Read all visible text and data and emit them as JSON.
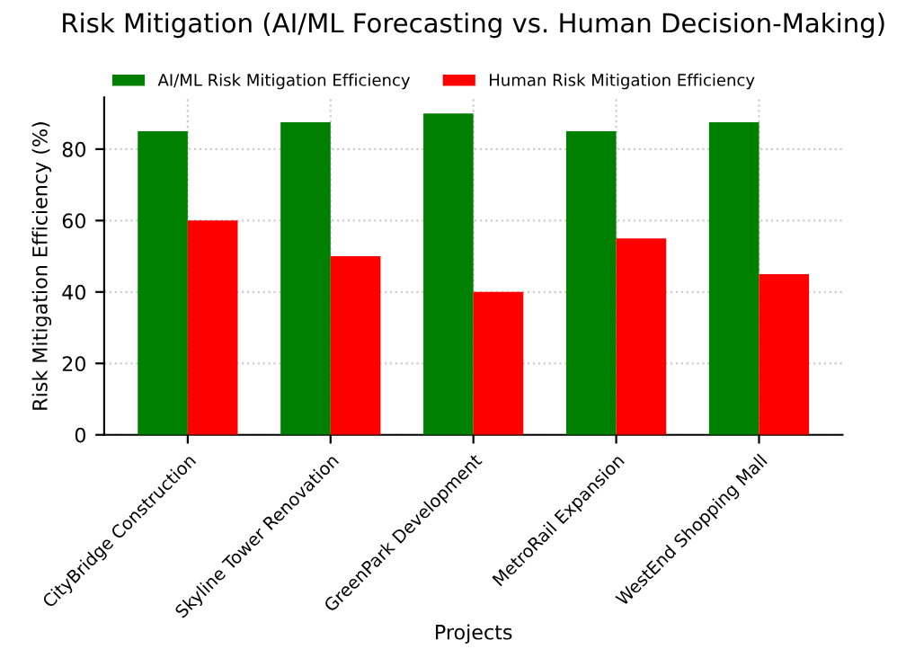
{
  "chart_data": {
    "type": "bar",
    "title": "Risk Mitigation (AI/ML Forecasting vs. Human Decision-Making)",
    "xlabel": "Projects",
    "ylabel": "Risk Mitigation Efficiency (%)",
    "categories": [
      "CityBridge Construction",
      "Skyline Tower Renovation",
      "GreenPark Development",
      "MetroRail Expansion",
      "WestEnd Shopping Mall"
    ],
    "series": [
      {
        "name": "AI/ML Risk Mitigation Efficiency",
        "color": "#008000",
        "values": [
          85,
          87.5,
          90,
          85,
          87.5
        ]
      },
      {
        "name": "Human Risk Mitigation Efficiency",
        "color": "#ff0000",
        "values": [
          60,
          50,
          40,
          55,
          45
        ]
      }
    ],
    "ylim": [
      0,
      94.5
    ],
    "yticks": [
      0,
      20,
      40,
      60,
      80
    ],
    "grid": true,
    "legend": "top left"
  }
}
